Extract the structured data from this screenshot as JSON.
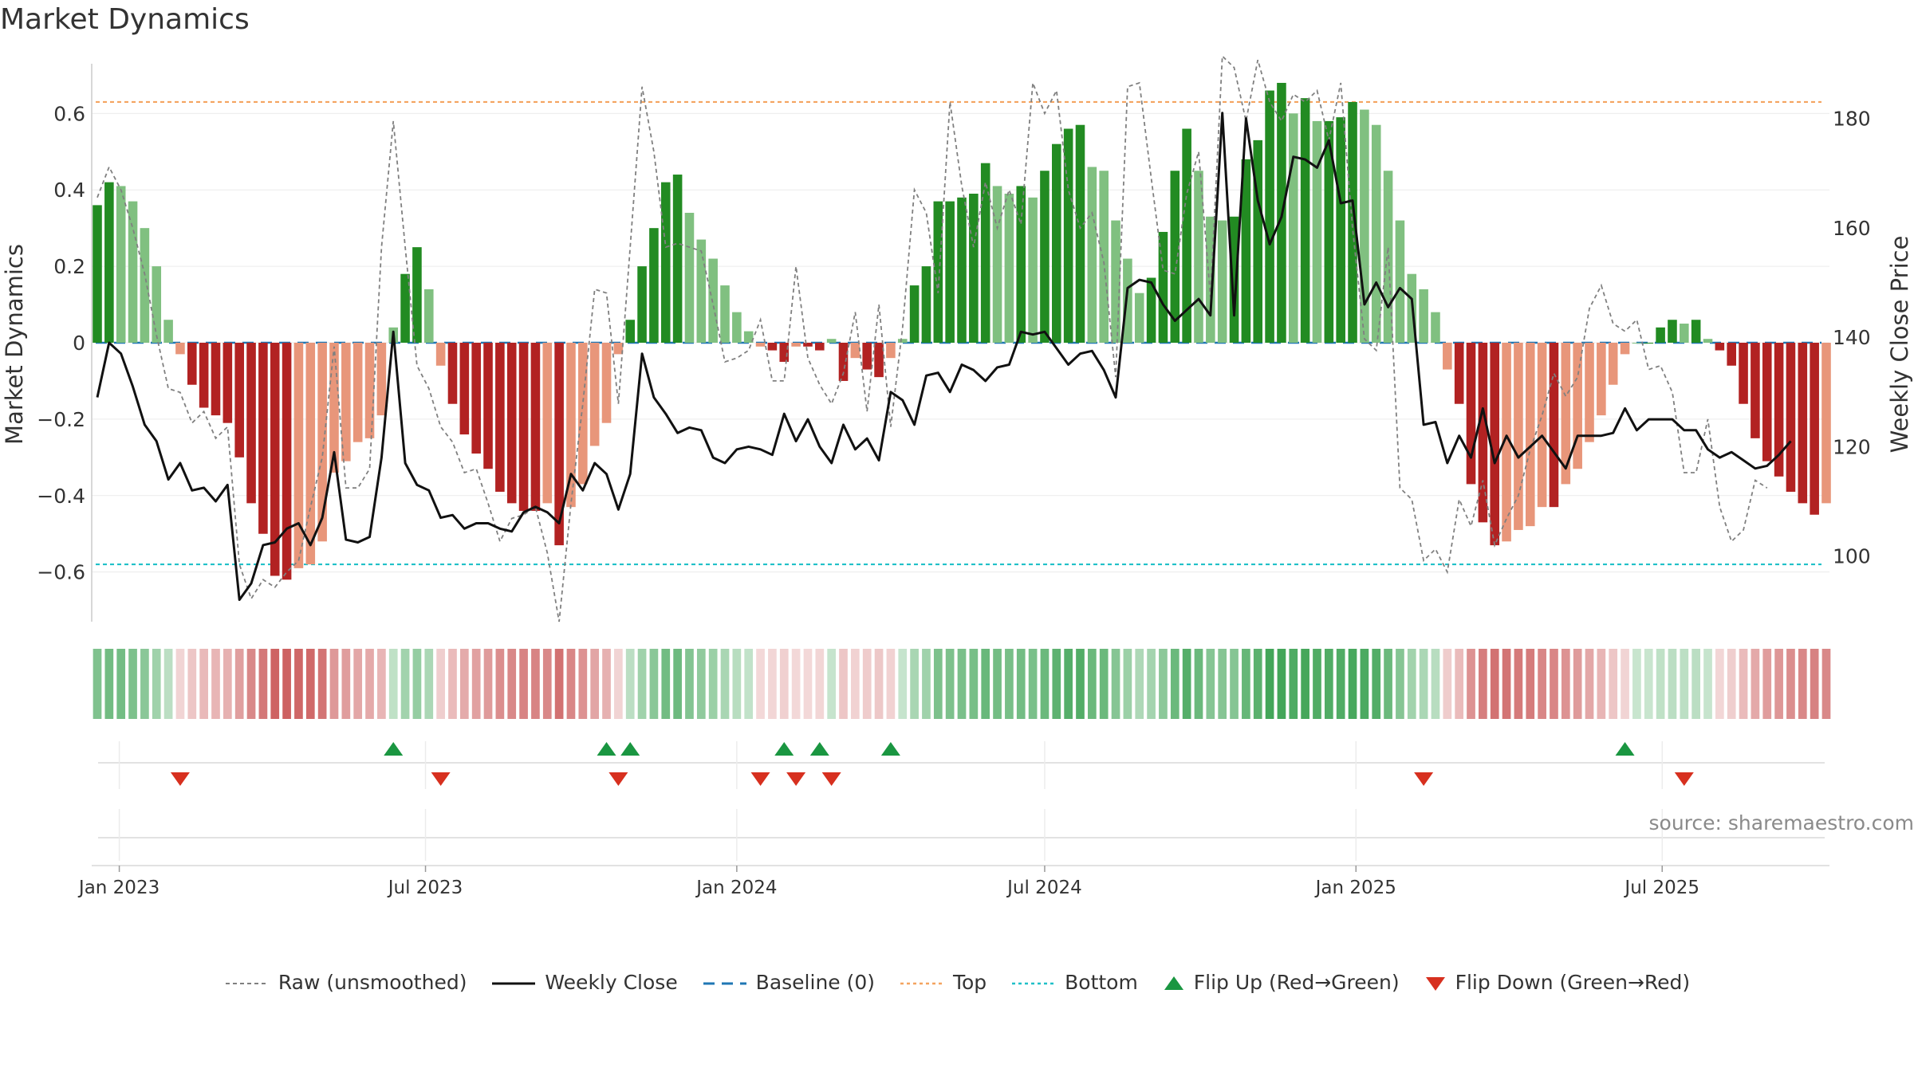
{
  "chart_data": {
    "type": "bar",
    "title": "Market Dynamics",
    "ylabel_left": "Market Dynamics",
    "ylabel_right": "Weekly Close Price",
    "source": "source: sharemaestro.com",
    "ylim_left": [
      -0.73,
      0.73
    ],
    "ylim_right": [
      88,
      190
    ],
    "x_ticks": [
      "Jan 2023",
      "Jul 2023",
      "Jan 2024",
      "Jul 2024",
      "Jan 2025",
      "Jul 2025"
    ],
    "y_ticks_left": [
      0.6,
      0.4,
      0.2,
      0,
      -0.2,
      -0.4,
      -0.6
    ],
    "y_ticks_left_labels": [
      "0.6",
      "0.4",
      "0.2",
      "0",
      "−0.2",
      "−0.4",
      "−0.6"
    ],
    "y_ticks_right": [
      180,
      160,
      140,
      120,
      100
    ],
    "top_line": 0.63,
    "bottom_line": -0.58,
    "baseline": 0,
    "weeks_start": "2022-12-19",
    "smoothed": [
      0.36,
      0.42,
      0.41,
      0.37,
      0.3,
      0.2,
      0.06,
      -0.03,
      -0.11,
      -0.17,
      -0.19,
      -0.21,
      -0.3,
      -0.42,
      -0.5,
      -0.61,
      -0.62,
      -0.59,
      -0.58,
      -0.52,
      -0.34,
      -0.31,
      -0.26,
      -0.25,
      -0.19,
      0.04,
      0.18,
      0.25,
      0.14,
      -0.06,
      -0.16,
      -0.24,
      -0.29,
      -0.33,
      -0.39,
      -0.42,
      -0.44,
      -0.44,
      -0.42,
      -0.53,
      -0.43,
      -0.37,
      -0.27,
      -0.21,
      -0.03,
      0.06,
      0.2,
      0.3,
      0.42,
      0.44,
      0.34,
      0.27,
      0.22,
      0.15,
      0.08,
      0.03,
      -0.01,
      -0.02,
      -0.05,
      -0.01,
      -0.01,
      -0.02,
      0.01,
      -0.1,
      -0.04,
      -0.07,
      -0.09,
      -0.04,
      0.01,
      0.15,
      0.2,
      0.37,
      0.37,
      0.38,
      0.39,
      0.47,
      0.41,
      0.39,
      0.41,
      0.38,
      0.45,
      0.52,
      0.56,
      0.57,
      0.46,
      0.45,
      0.32,
      0.22,
      0.13,
      0.17,
      0.29,
      0.45,
      0.56,
      0.45,
      0.33,
      0.32,
      0.33,
      0.48,
      0.53,
      0.66,
      0.68,
      0.6,
      0.64,
      0.58,
      0.58,
      0.59,
      0.63,
      0.61,
      0.57,
      0.45,
      0.32,
      0.18,
      0.14,
      0.08,
      -0.07,
      -0.16,
      -0.37,
      -0.47,
      -0.53,
      -0.52,
      -0.49,
      -0.48,
      -0.43,
      -0.43,
      -0.37,
      -0.33,
      -0.26,
      -0.19,
      -0.11,
      -0.03,
      0.0,
      0.0,
      0.04,
      0.06,
      0.05,
      0.06,
      0.01,
      -0.02,
      -0.06,
      -0.16,
      -0.25,
      -0.31,
      -0.35,
      -0.39,
      -0.42,
      -0.45,
      -0.42
    ],
    "raw": [
      0.38,
      0.46,
      0.4,
      0.3,
      0.18,
      0.02,
      -0.12,
      -0.13,
      -0.21,
      -0.18,
      -0.25,
      -0.22,
      -0.58,
      -0.67,
      -0.62,
      -0.64,
      -0.6,
      -0.57,
      -0.43,
      -0.3,
      -0.01,
      -0.38,
      -0.38,
      -0.33,
      0.25,
      0.58,
      0.25,
      -0.06,
      -0.12,
      -0.22,
      -0.26,
      -0.34,
      -0.33,
      -0.42,
      -0.52,
      -0.46,
      -0.45,
      -0.43,
      -0.55,
      -0.73,
      -0.42,
      -0.16,
      0.14,
      0.13,
      -0.16,
      0.25,
      0.67,
      0.5,
      0.25,
      0.26,
      0.25,
      0.24,
      0.1,
      -0.05,
      -0.04,
      -0.02,
      0.06,
      -0.1,
      -0.1,
      0.2,
      -0.04,
      -0.11,
      -0.16,
      -0.08,
      0.08,
      -0.18,
      0.1,
      -0.22,
      0.04,
      0.4,
      0.34,
      0.13,
      0.63,
      0.41,
      0.25,
      0.42,
      0.3,
      0.4,
      0.31,
      0.68,
      0.6,
      0.66,
      0.4,
      0.3,
      0.34,
      0.21,
      -0.09,
      0.67,
      0.68,
      0.43,
      0.19,
      0.18,
      0.39,
      0.5,
      0.12,
      0.75,
      0.72,
      0.58,
      0.74,
      0.63,
      0.58,
      0.65,
      0.63,
      0.66,
      0.53,
      0.68,
      0.3,
      0.01,
      -0.02,
      0.25,
      -0.38,
      -0.41,
      -0.57,
      -0.54,
      -0.6,
      -0.41,
      -0.48,
      -0.36,
      -0.53,
      -0.46,
      -0.4,
      -0.28,
      -0.19,
      -0.08,
      -0.14,
      -0.09,
      0.09,
      0.15,
      0.05,
      0.03,
      0.06,
      -0.07,
      -0.06,
      -0.13,
      -0.34,
      -0.34,
      -0.2,
      -0.43,
      -0.52,
      -0.49,
      -0.36,
      -0.38
    ],
    "weekly_close": [
      129,
      139,
      137,
      131,
      124,
      121,
      114,
      117,
      112,
      112.5,
      110,
      113,
      92,
      95,
      102,
      102.5,
      105,
      106,
      102,
      107,
      119,
      103,
      102.5,
      103.5,
      118,
      141,
      117,
      113,
      112,
      107,
      107.5,
      105,
      106,
      106,
      105,
      104.5,
      108,
      109,
      108,
      106,
      115,
      112,
      117,
      115,
      108.5,
      115,
      137,
      129,
      126,
      122.5,
      123.5,
      123,
      118,
      117,
      119.5,
      120,
      119.5,
      118.5,
      126,
      121,
      125,
      120,
      117,
      124,
      119.5,
      121.5,
      117.5,
      130,
      128.5,
      124,
      133,
      133.5,
      130,
      135,
      134,
      132,
      134.5,
      135,
      141,
      140.5,
      141,
      138,
      135,
      137,
      137.5,
      134,
      129,
      149,
      150.5,
      150,
      146,
      143,
      145,
      147,
      144,
      181,
      144,
      180,
      165,
      157,
      162,
      173,
      172.5,
      171,
      176,
      164.5,
      165,
      146,
      150,
      145.5,
      149,
      147,
      124,
      124.5,
      117,
      122,
      118,
      127,
      117,
      122,
      118,
      120,
      122,
      119,
      116,
      122,
      122,
      122,
      122.5,
      127,
      123,
      125,
      125,
      125,
      123,
      123,
      119.5,
      118,
      119,
      117.5,
      116,
      116.5,
      118.5,
      121
    ]
  },
  "regime_strip": "Regime Strip",
  "flip_markers": {
    "up_weeks": [
      25,
      43,
      45,
      58,
      61,
      67,
      129
    ],
    "down_weeks": [
      7,
      29,
      44,
      56,
      59,
      62,
      112,
      134
    ]
  },
  "legend": {
    "raw": "Raw (unsmoothed)",
    "close": "Weekly Close",
    "baseline": "Baseline (0)",
    "top": "Top",
    "bottom": "Bottom",
    "flip_up": "Flip Up (Red→Green)",
    "flip_down": "Flip Down (Green→Red)"
  },
  "colors": {
    "green_strong": "#228b22",
    "green_light": "#80c080",
    "red_strong": "#b22222",
    "red_light": "#e8967a",
    "raw_line": "#808080",
    "close_line": "#111111",
    "baseline": "#1f77b4",
    "top": "#f4a460",
    "bottom": "#20c0c8",
    "marker_up": "#1a9641",
    "marker_down": "#d7301f"
  }
}
